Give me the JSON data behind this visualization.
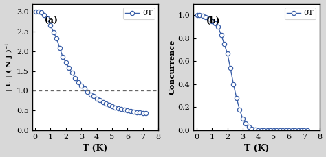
{
  "panel_a": {
    "T": [
      0.05,
      0.2,
      0.4,
      0.6,
      0.8,
      1.0,
      1.2,
      1.4,
      1.6,
      1.8,
      2.0,
      2.2,
      2.4,
      2.6,
      2.8,
      3.0,
      3.2,
      3.4,
      3.6,
      3.8,
      4.0,
      4.2,
      4.4,
      4.6,
      4.8,
      5.0,
      5.2,
      5.4,
      5.6,
      5.8,
      6.0,
      6.2,
      6.4,
      6.6,
      6.8,
      7.0,
      7.2
    ],
    "U": [
      3.0,
      3.0,
      2.98,
      2.92,
      2.82,
      2.65,
      2.48,
      2.32,
      2.08,
      1.85,
      1.72,
      1.58,
      1.45,
      1.32,
      1.22,
      1.12,
      1.06,
      0.97,
      0.91,
      0.86,
      0.8,
      0.76,
      0.72,
      0.68,
      0.64,
      0.61,
      0.58,
      0.56,
      0.54,
      0.52,
      0.5,
      0.49,
      0.47,
      0.46,
      0.45,
      0.44,
      0.43
    ],
    "xlabel": "T (K)",
    "label": "(a)",
    "dashed_y": 1.0,
    "xlim": [
      -0.2,
      8
    ],
    "ylim": [
      0.0,
      3.2
    ],
    "yticks": [
      0.0,
      0.5,
      1.0,
      1.5,
      2.0,
      2.5,
      3.0
    ],
    "xticks": [
      0,
      1,
      2,
      3,
      4,
      5,
      6,
      7,
      8
    ]
  },
  "panel_b": {
    "T": [
      0.05,
      0.2,
      0.4,
      0.6,
      0.8,
      1.0,
      1.2,
      1.4,
      1.6,
      1.8,
      2.0,
      2.2,
      2.4,
      2.6,
      2.8,
      3.0,
      3.2,
      3.4,
      3.6,
      3.8,
      4.0,
      4.2,
      4.4,
      4.6,
      4.8,
      5.0,
      5.2,
      5.4,
      5.6,
      5.8,
      6.0,
      6.2,
      6.4,
      6.6,
      6.8,
      7.0,
      7.2
    ],
    "C": [
      1.0,
      1.0,
      0.995,
      0.985,
      0.97,
      0.95,
      0.93,
      0.9,
      0.83,
      0.75,
      0.67,
      0.54,
      0.4,
      0.28,
      0.18,
      0.1,
      0.06,
      0.03,
      0.01,
      0.005,
      0.0,
      0.0,
      0.0,
      0.0,
      0.0,
      0.0,
      0.0,
      0.0,
      0.0,
      0.0,
      0.0,
      0.0,
      0.0,
      0.0,
      0.0,
      0.0,
      0.0
    ],
    "ylabel": "Concurrence",
    "xlabel": "T (K)",
    "label": "(b)",
    "xlim": [
      -0.2,
      8
    ],
    "ylim": [
      0.0,
      1.1
    ],
    "yticks": [
      0.0,
      0.2,
      0.4,
      0.6,
      0.8,
      1.0
    ],
    "xticks": [
      0,
      1,
      2,
      3,
      4,
      5,
      6,
      7,
      8
    ]
  },
  "line_color": "#3a5fa8",
  "marker": "o",
  "markersize": 4.5,
  "linewidth": 1.0,
  "legend_label": "0T",
  "background_color": "#ffffff",
  "border_color": "#000000",
  "outer_bg": "#d8d8d8"
}
